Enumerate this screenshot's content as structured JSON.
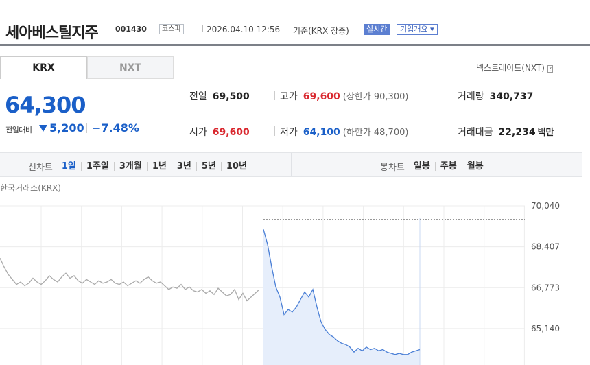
{
  "header": {
    "title": "세아베스틸지주",
    "code": "001430",
    "market": "코스피",
    "datetime": "2026.04.10 12:56",
    "basis": "기준(KRX 장중)",
    "realtime_button": "실시간",
    "company_button": "기업개요"
  },
  "tabs": [
    "KRX",
    "NXT"
  ],
  "nxt_link": "넥스트레이드(NXT)",
  "price": {
    "current": "64,300",
    "change_label": "전일대비",
    "change": "5,200",
    "rate": "−7.48%"
  },
  "stats": [
    {
      "label": "전일",
      "value": "69,500"
    },
    {
      "label": "고가",
      "value": "69,600",
      "sub": "(상한가 90,300)"
    },
    {
      "label": "거래량",
      "value": "340,737"
    },
    {
      "label": "시가",
      "value": "69,600"
    },
    {
      "label": "저가",
      "value": "64,100",
      "sub": "(하한가 48,700)"
    },
    {
      "label": "거래대금",
      "value": "22,234",
      "unit": "백만"
    }
  ],
  "periods": {
    "line_label": "선차트",
    "line": [
      "1일",
      "1주일",
      "3개월",
      "1년",
      "3년",
      "5년",
      "10년"
    ],
    "candle_label": "봉차트",
    "candle": [
      "일봉",
      "주봉",
      "월봉"
    ]
  },
  "chart_data": {
    "type": "line",
    "title": "한국거래소(KRX)",
    "ylim": [
      63685,
      70040
    ],
    "yticks": [
      {
        "value": 70040,
        "label": "70,040"
      },
      {
        "value": 68407,
        "label": "68,407"
      },
      {
        "value": 66773,
        "label": "66,773"
      },
      {
        "value": 65140,
        "label": "65,140"
      }
    ],
    "reference_value": 69500,
    "grid": true,
    "series": [
      {
        "color": "#aaaaaa",
        "values": [
          67950,
          67600,
          67300,
          67100,
          66900,
          67000,
          66850,
          66950,
          67150,
          67000,
          66900,
          67050,
          67250,
          67100,
          67000,
          67200,
          67350,
          67150,
          67250,
          67050,
          66950,
          67100,
          67000,
          66900,
          67050,
          66950,
          67000,
          67100,
          66950,
          66900,
          67000,
          66850,
          66950,
          67050,
          66950,
          67100,
          67200,
          67050,
          66950,
          67000,
          66850,
          66700,
          66800,
          66750,
          66900,
          66700,
          66800,
          66650,
          66600,
          66700,
          66550,
          66650,
          66500,
          66750,
          66600,
          66450,
          66500,
          66700,
          66300,
          66550,
          66250,
          66400,
          66550,
          66700,
          null,
          null,
          null,
          null,
          null,
          null,
          null,
          null,
          null,
          null,
          null,
          null,
          null,
          null,
          null,
          null,
          null,
          null,
          null,
          null,
          null,
          null,
          null,
          null,
          null,
          null,
          null,
          null,
          null,
          null,
          null,
          null,
          null,
          null,
          null,
          null,
          null,
          null,
          null
        ]
      },
      {
        "color": "#4a7fd6",
        "fill": "#e6eefb",
        "values": [
          null,
          null,
          null,
          null,
          null,
          null,
          null,
          null,
          null,
          null,
          null,
          null,
          null,
          null,
          null,
          null,
          null,
          null,
          null,
          null,
          null,
          null,
          null,
          null,
          null,
          null,
          null,
          null,
          null,
          null,
          null,
          null,
          null,
          null,
          null,
          null,
          null,
          null,
          null,
          null,
          null,
          null,
          null,
          null,
          null,
          null,
          null,
          null,
          null,
          null,
          null,
          null,
          null,
          null,
          null,
          null,
          null,
          null,
          null,
          null,
          null,
          null,
          null,
          null,
          69100,
          68500,
          67600,
          66800,
          66400,
          65700,
          65900,
          65800,
          66000,
          66300,
          66600,
          66400,
          66700,
          66000,
          65400,
          65100,
          64900,
          64800,
          64650,
          64550,
          64500,
          64400,
          64200,
          64350,
          64250,
          64400,
          64300,
          64350,
          64250,
          64300,
          64200,
          64150,
          64100,
          64150,
          64100,
          64100,
          64200,
          64250,
          64300
        ]
      }
    ]
  }
}
